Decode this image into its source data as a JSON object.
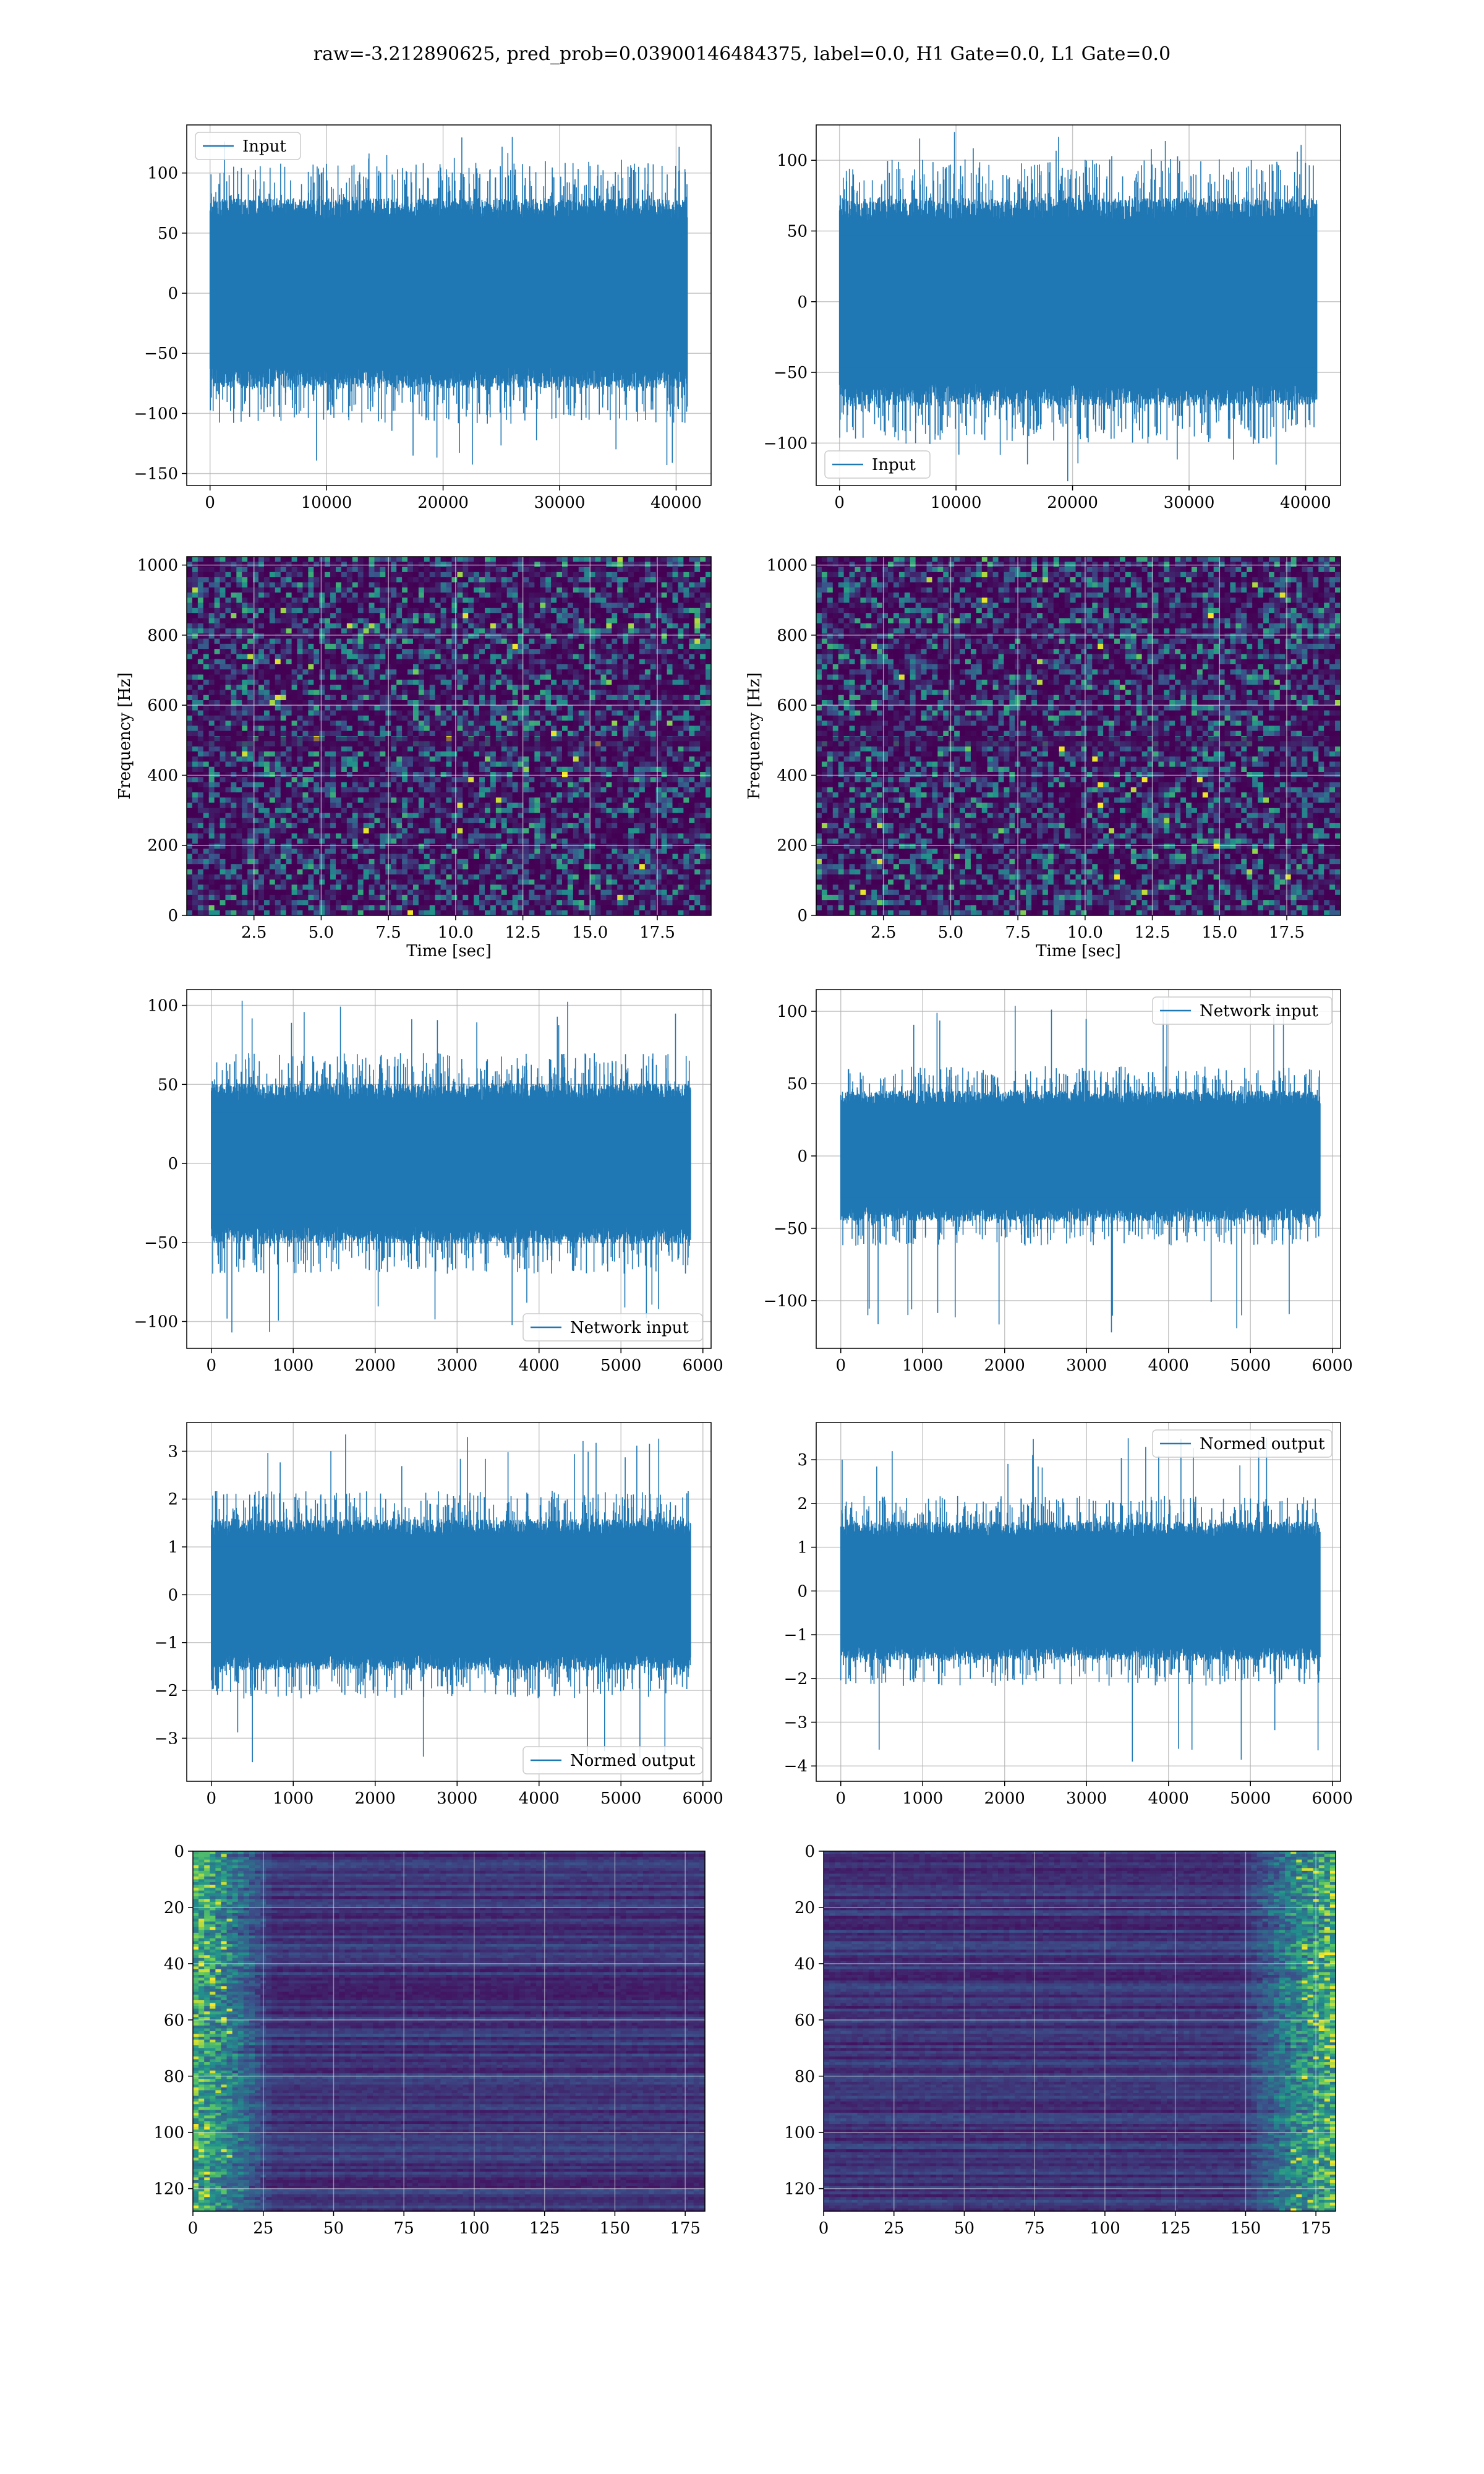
{
  "figure": {
    "suptitle": "raw=-3.212890625, pred_prob=0.03900146484375, label=0.0, H1 Gate=0.0, L1 Gate=0.0"
  },
  "colors": {
    "line": "#1f77b4",
    "grid": "#b0b0b0",
    "viridis_low": "#440154",
    "viridis_mid": "#21918c",
    "viridis_high": "#fde725"
  },
  "chart_data": [
    {
      "id": "input-h1",
      "type": "line",
      "legend": "Input",
      "legend_loc": "upper-left",
      "xlim": [
        -2000,
        43000
      ],
      "ylim": [
        -160,
        140
      ],
      "xticks": [
        0,
        10000,
        20000,
        30000,
        40000
      ],
      "yticks": [
        -150,
        -100,
        -50,
        0,
        50,
        100
      ],
      "n": 40960,
      "envelope": 70,
      "peak": 130,
      "trough": -143,
      "grid": true
    },
    {
      "id": "input-l1",
      "type": "line",
      "legend": "Input",
      "legend_loc": "lower-left",
      "xlim": [
        -2000,
        43000
      ],
      "ylim": [
        -130,
        125
      ],
      "xticks": [
        0,
        10000,
        20000,
        30000,
        40000
      ],
      "yticks": [
        -100,
        -50,
        0,
        50,
        100
      ],
      "n": 40960,
      "envelope": 65,
      "peak": 120,
      "trough": -127,
      "grid": true
    },
    {
      "id": "spectrogram-h1",
      "type": "heatmap",
      "colormap": "viridis",
      "xlabel": "Time [sec]",
      "ylabel": "Frequency [Hz]",
      "xlim": [
        0,
        19.5
      ],
      "ylim": [
        0,
        1024
      ],
      "xticks": [
        2.5,
        5.0,
        7.5,
        10.0,
        12.5,
        15.0,
        17.5
      ],
      "yticks": [
        0,
        200,
        400,
        600,
        800,
        1000
      ],
      "grid": true
    },
    {
      "id": "spectrogram-l1",
      "type": "heatmap",
      "colormap": "viridis",
      "xlabel": "Time [sec]",
      "ylabel": "Frequency [Hz]",
      "xlim": [
        0,
        19.5
      ],
      "ylim": [
        0,
        1024
      ],
      "xticks": [
        2.5,
        5.0,
        7.5,
        10.0,
        12.5,
        15.0,
        17.5
      ],
      "yticks": [
        0,
        200,
        400,
        600,
        800,
        1000
      ],
      "grid": true
    },
    {
      "id": "network-input-h1",
      "type": "line",
      "legend": "Network input",
      "legend_loc": "lower-right",
      "xlim": [
        -300,
        6100
      ],
      "ylim": [
        -117,
        110
      ],
      "xticks": [
        0,
        1000,
        2000,
        3000,
        4000,
        5000,
        6000
      ],
      "yticks": [
        -100,
        -50,
        0,
        50,
        100
      ],
      "n": 5850,
      "envelope": 45,
      "peak": 103,
      "trough": -107,
      "grid": true
    },
    {
      "id": "network-input-l1",
      "type": "line",
      "legend": "Network input",
      "legend_loc": "upper-right",
      "xlim": [
        -300,
        6100
      ],
      "ylim": [
        -133,
        115
      ],
      "xticks": [
        0,
        1000,
        2000,
        3000,
        4000,
        5000,
        6000
      ],
      "yticks": [
        -100,
        -50,
        0,
        50,
        100
      ],
      "n": 5850,
      "envelope": 40,
      "peak": 108,
      "trough": -122,
      "grid": true
    },
    {
      "id": "normed-output-h1",
      "type": "line",
      "legend": "Normed output",
      "legend_loc": "lower-right",
      "xlim": [
        -300,
        6100
      ],
      "ylim": [
        -3.9,
        3.6
      ],
      "xticks": [
        0,
        1000,
        2000,
        3000,
        4000,
        5000,
        6000
      ],
      "yticks": [
        -3,
        -2,
        -1,
        0,
        1,
        2,
        3
      ],
      "n": 5850,
      "envelope": 1.4,
      "peak": 3.35,
      "trough": -3.5,
      "grid": true
    },
    {
      "id": "normed-output-l1",
      "type": "line",
      "legend": "Normed output",
      "legend_loc": "upper-right",
      "xlim": [
        -300,
        6100
      ],
      "ylim": [
        -4.35,
        3.85
      ],
      "xticks": [
        0,
        1000,
        2000,
        3000,
        4000,
        5000,
        6000
      ],
      "yticks": [
        -4,
        -3,
        -2,
        -1,
        0,
        1,
        2,
        3
      ],
      "n": 5850,
      "envelope": 1.4,
      "peak": 3.5,
      "trough": -3.9,
      "grid": true
    },
    {
      "id": "feature-map-h1",
      "type": "heatmap",
      "colormap": "viridis",
      "xlim": [
        0,
        182
      ],
      "ylim": [
        128,
        0
      ],
      "xticks": [
        0,
        25,
        50,
        75,
        100,
        125,
        150,
        175
      ],
      "yticks": [
        0,
        20,
        40,
        60,
        80,
        100,
        120
      ],
      "hot_side": "left",
      "grid": true
    },
    {
      "id": "feature-map-l1",
      "type": "heatmap",
      "colormap": "viridis",
      "xlim": [
        0,
        182
      ],
      "ylim": [
        128,
        0
      ],
      "xticks": [
        0,
        25,
        50,
        75,
        100,
        125,
        150,
        175
      ],
      "yticks": [
        0,
        20,
        40,
        60,
        80,
        100,
        120
      ],
      "hot_side": "right",
      "grid": true
    }
  ]
}
